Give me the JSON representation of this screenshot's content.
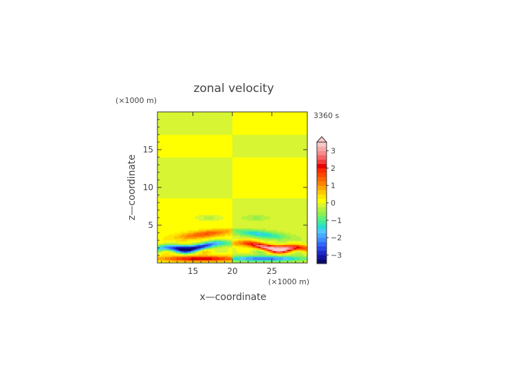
{
  "chart_data": {
    "type": "heatmap",
    "title": "zonal velocity",
    "time_label": "3360 s",
    "xlabel": "x—coordinate",
    "ylabel": "z—coordinate",
    "x_unit_label": "(×1000 m)",
    "y_unit_label": "(×1000 m)",
    "xlim": [
      10.5,
      29.5
    ],
    "ylim": [
      0,
      20
    ],
    "xticks": [
      "15",
      "20",
      "25"
    ],
    "yticks": [
      "5",
      "10",
      "15"
    ],
    "xtick_values": [
      15,
      20,
      25
    ],
    "ytick_values": [
      5,
      10,
      15
    ],
    "colorbar": {
      "tick_labels": [
        "3",
        "2",
        "1",
        "0",
        "−1",
        "−2",
        "−3"
      ],
      "tick_values": [
        3,
        2,
        1,
        0,
        -1,
        -2,
        -3
      ],
      "levels": [
        -3.5,
        -3.25,
        -3,
        -2.75,
        -2.5,
        -2.25,
        -2,
        -1.75,
        -1.5,
        -1.25,
        -1,
        -0.75,
        -0.5,
        -0.25,
        0,
        0.25,
        0.5,
        0.75,
        1,
        1.25,
        1.5,
        1.75,
        2,
        2.25,
        2.5,
        2.75,
        3,
        3.25,
        3.5
      ],
      "colors": [
        "#0a0a6e",
        "#1414a0",
        "#1e28c8",
        "#2846e6",
        "#3264ff",
        "#3c8cff",
        "#46aaff",
        "#50c8ff",
        "#28dcd2",
        "#3ceba0",
        "#64f078",
        "#8cf050",
        "#b4f03c",
        "#d7f532",
        "#ffff00",
        "#ffe600",
        "#ffc800",
        "#ffa500",
        "#ff8200",
        "#ff6400",
        "#ff4600",
        "#ff2800",
        "#e60000",
        "#f03c3c",
        "#f56464",
        "#f58c8c",
        "#f5aaaa",
        "#fac8c8"
      ],
      "extend": "max"
    },
    "field_description_regions": [
      {
        "z_range": [
          17,
          20
        ],
        "value_left": -0.1,
        "value_right": 0.1
      },
      {
        "z_range": [
          14,
          17
        ],
        "value_left": 0.1,
        "value_right": -0.1
      },
      {
        "z_range": [
          9,
          14
        ],
        "value_left": -0.1,
        "value_right": 0.1
      },
      {
        "z_range": [
          3.5,
          9
        ],
        "value_left": 0.1,
        "value_right": -0.1
      },
      {
        "z_range": [
          0,
          3.5
        ],
        "value_left": -2.5,
        "value_right": 2.8
      }
    ]
  }
}
